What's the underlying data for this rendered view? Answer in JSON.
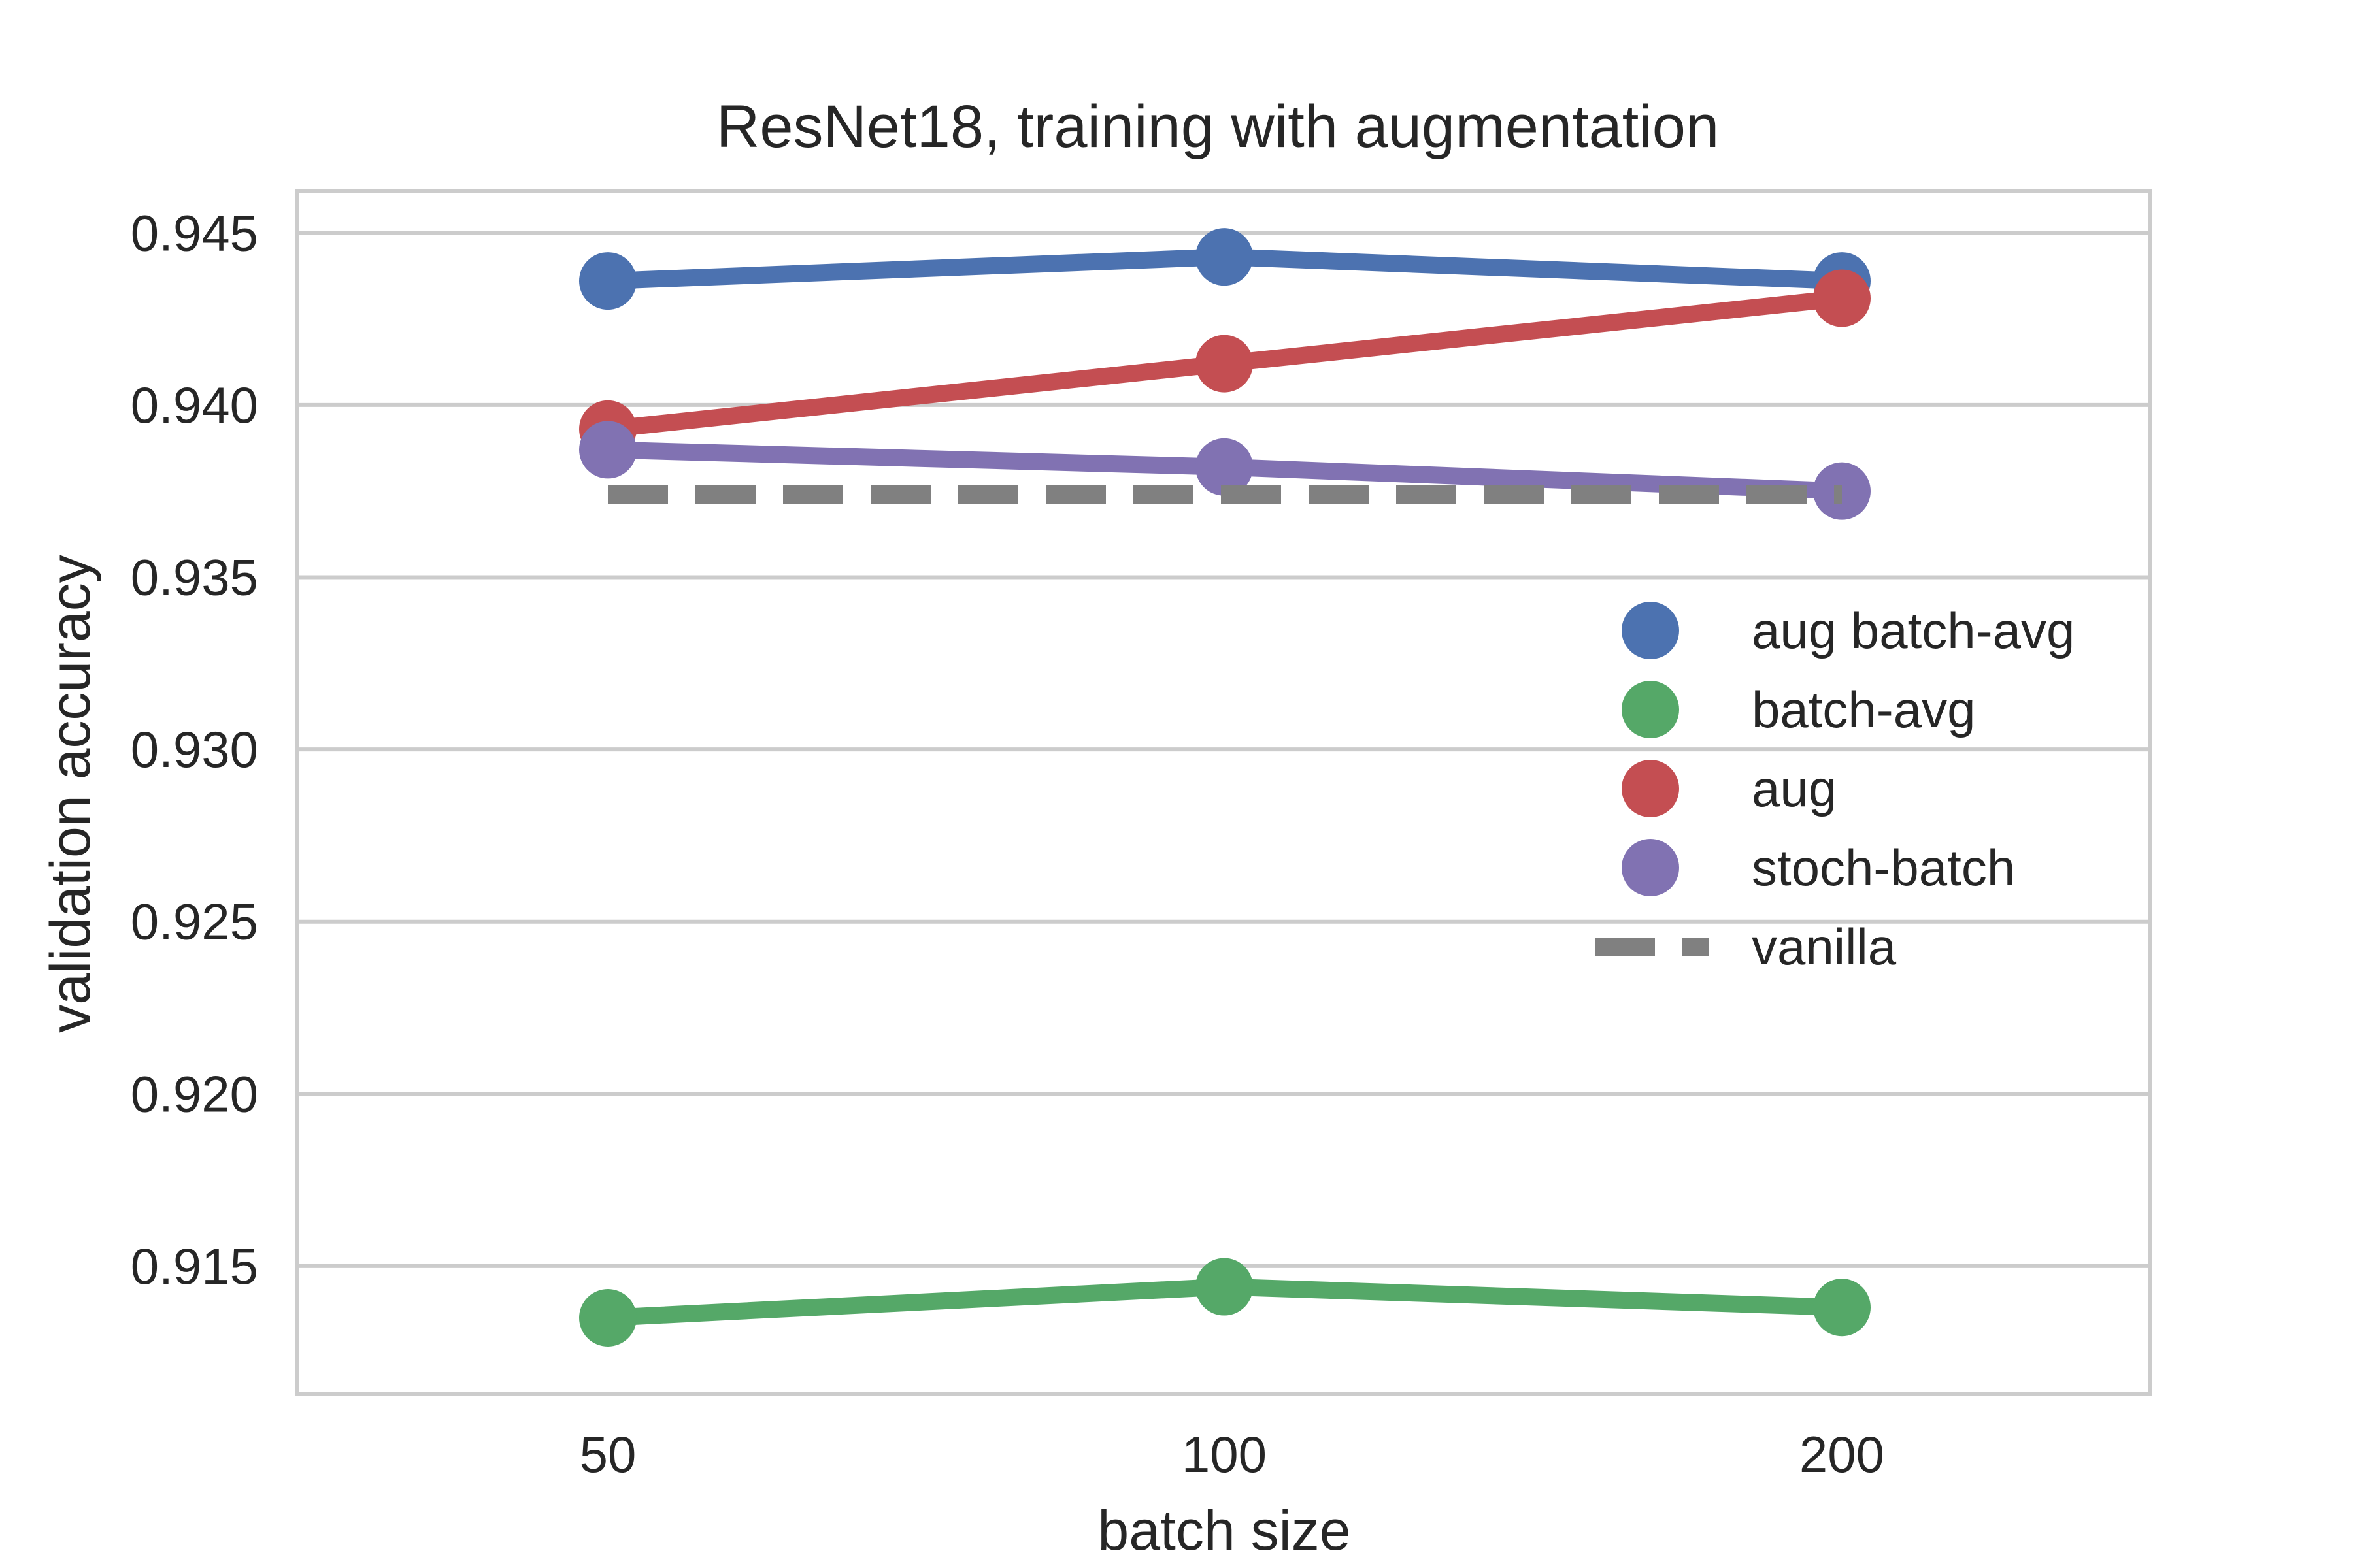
{
  "chart_data": {
    "type": "line",
    "title": "ResNet18, training with augmentation",
    "xlabel": "batch size",
    "ylabel": "validation accuracy",
    "categories": [
      "50",
      "100",
      "200"
    ],
    "ylim": [
      0.9113,
      0.9462
    ],
    "yticks": [
      "0.915",
      "0.920",
      "0.925",
      "0.930",
      "0.935",
      "0.940",
      "0.945"
    ],
    "grid": true,
    "legend_position": "right",
    "series": [
      {
        "name": "aug batch-avg",
        "color": "#4c72b0",
        "values": [
          0.9436,
          0.9443,
          0.9436
        ],
        "style": "solid-markers"
      },
      {
        "name": " batch-avg",
        "color": "#55a868",
        "values": [
          0.9135,
          0.9144,
          0.9138
        ],
        "style": "solid-markers"
      },
      {
        "name": "aug",
        "color": "#c44e52",
        "values": [
          0.9393,
          0.9412,
          0.9431
        ],
        "style": "solid-markers"
      },
      {
        "name": "stoch-batch",
        "color": "#8172b2",
        "values": [
          0.9387,
          0.9382,
          0.9375
        ],
        "style": "solid-markers"
      },
      {
        "name": "vanilla",
        "color": "#808080",
        "values": [
          0.9374,
          0.9374,
          0.9374
        ],
        "style": "dashed"
      }
    ]
  }
}
